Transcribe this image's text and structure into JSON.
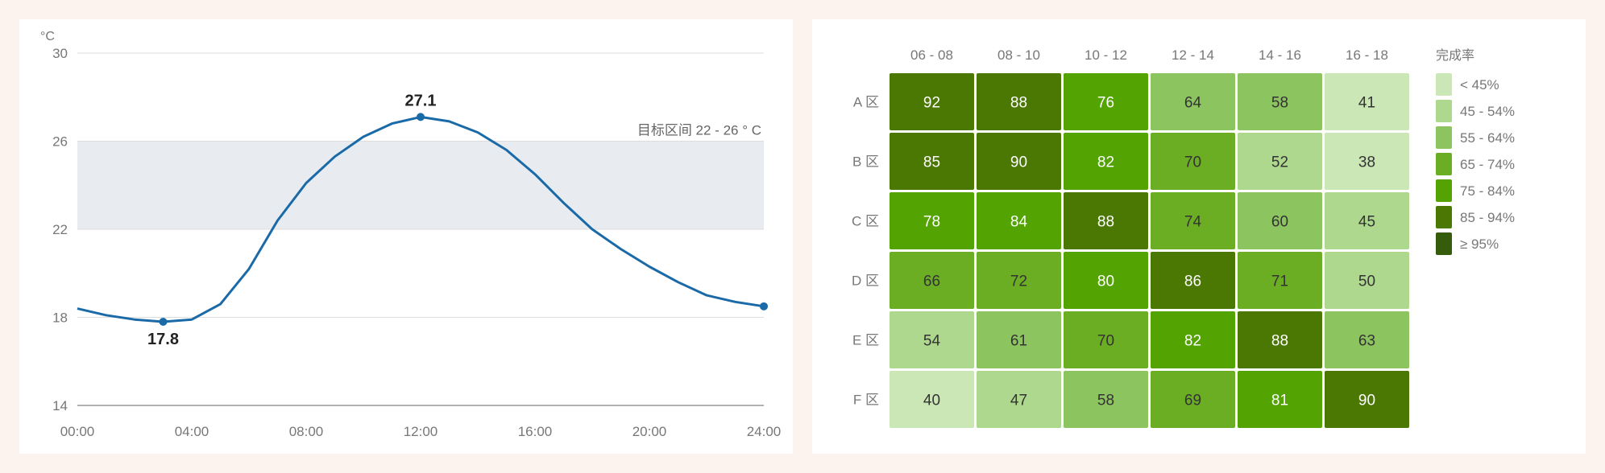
{
  "colors": {
    "page_bg": "#fcf3ee",
    "line": "#1a6aa8",
    "band": "#e8ecf0",
    "grid": "#dddddd",
    "baseline": "#999999"
  },
  "chart_data": [
    {
      "type": "line",
      "y_unit": "°C",
      "x_ticks": [
        "00:00",
        "04:00",
        "08:00",
        "12:00",
        "16:00",
        "20:00",
        "24:00"
      ],
      "y_ticks": [
        14,
        18,
        22,
        26,
        30
      ],
      "xlim": [
        0,
        24
      ],
      "ylim": [
        14,
        30
      ],
      "grid": true,
      "band": {
        "from": 22,
        "to": 26,
        "label": "目标区间 22 - 26 ° C"
      },
      "series": [
        {
          "x": [
            0,
            1,
            2,
            3,
            4,
            5,
            6,
            7,
            8,
            9,
            10,
            11,
            12,
            13,
            14,
            15,
            16,
            17,
            18,
            19,
            20,
            21,
            22,
            23,
            24
          ],
          "y": [
            18.4,
            18.1,
            17.9,
            17.8,
            17.9,
            18.6,
            20.2,
            22.4,
            24.1,
            25.3,
            26.2,
            26.8,
            27.1,
            26.9,
            26.4,
            25.6,
            24.5,
            23.2,
            22.0,
            21.1,
            20.3,
            19.6,
            19.0,
            18.7,
            18.5
          ]
        }
      ],
      "annotations": [
        {
          "x": 3,
          "y": 17.8,
          "label": "17.8",
          "position": "below"
        },
        {
          "x": 12,
          "y": 27.1,
          "label": "27.1",
          "position": "above"
        }
      ],
      "end_marker": {
        "x": 24,
        "y": 18.5
      }
    },
    {
      "type": "heatmap",
      "columns": [
        "06 - 08",
        "08 - 10",
        "10 - 12",
        "12 - 14",
        "14 - 16",
        "16 - 18"
      ],
      "rows": [
        "A 区",
        "B 区",
        "C 区",
        "D 区",
        "E 区",
        "F 区"
      ],
      "values": [
        [
          92,
          88,
          76,
          64,
          58,
          41
        ],
        [
          85,
          90,
          82,
          70,
          52,
          38
        ],
        [
          78,
          84,
          88,
          74,
          60,
          45
        ],
        [
          66,
          72,
          80,
          86,
          71,
          50
        ],
        [
          54,
          61,
          70,
          82,
          88,
          63
        ],
        [
          40,
          47,
          58,
          69,
          81,
          90
        ]
      ],
      "legend": {
        "title": "完成率",
        "placement": "right",
        "bins": [
          {
            "label": "< 45%",
            "min": 0,
            "max": 44,
            "color": "#cbe7b5"
          },
          {
            "label": "45 - 54%",
            "min": 45,
            "max": 54,
            "color": "#add88d"
          },
          {
            "label": "55 - 64%",
            "min": 55,
            "max": 64,
            "color": "#8cc55f"
          },
          {
            "label": "65 - 74%",
            "min": 65,
            "max": 74,
            "color": "#6cae23"
          },
          {
            "label": "75 - 84%",
            "min": 75,
            "max": 84,
            "color": "#53a402"
          },
          {
            "label": "85 - 94%",
            "min": 85,
            "max": 94,
            "color": "#4a7802"
          },
          {
            "label": "≥ 95%",
            "min": 95,
            "max": 100,
            "color": "#355c0a"
          }
        ]
      }
    }
  ]
}
